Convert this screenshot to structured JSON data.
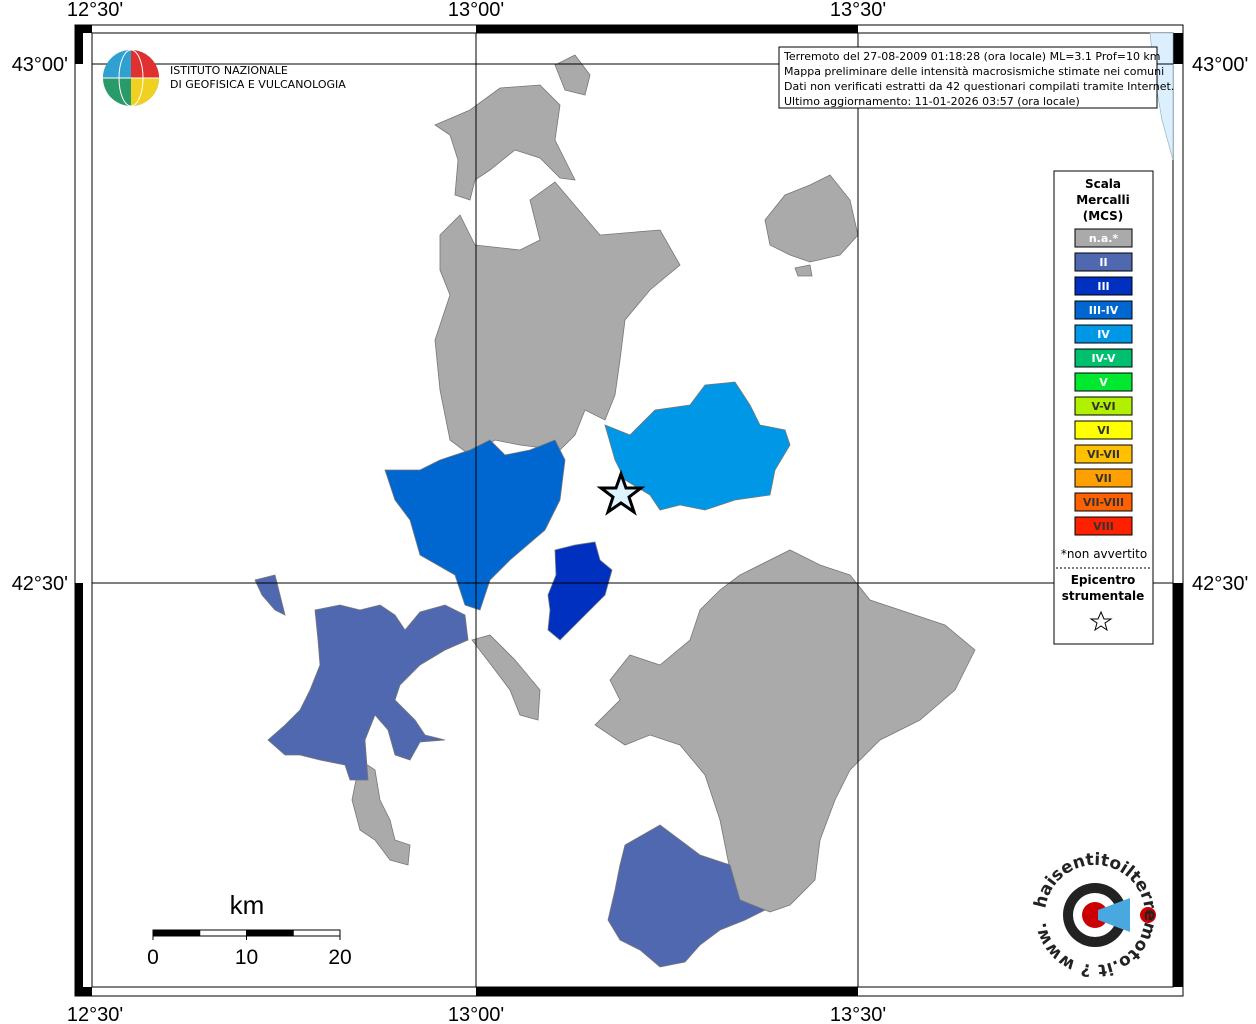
{
  "map": {
    "longitudes": [
      "12°30'",
      "13°00'",
      "13°30'"
    ],
    "latitudes": [
      "43°00'",
      "42°30'"
    ]
  },
  "header": {
    "institute": [
      "ISTITUTO NAZIONALE",
      "DI GEOFISICA E VULCANOLOGIA"
    ],
    "info": [
      "Terremoto del 27-08-2009 01:18:28 (ora locale) ML=3.1 Prof=10 km",
      "Mappa preliminare delle intensità macrosismiche stimate nei comuni",
      "Dati non verificati estratti da 42 questionari compilati tramite Internet.",
      "Ultimo aggiornamento: 11-01-2026 03:57 (ora locale)"
    ]
  },
  "legend": {
    "title": [
      "Scala",
      "Mercalli",
      "(MCS)"
    ],
    "items": [
      {
        "label": "n.a.*",
        "color": "#aaaaaa"
      },
      {
        "label": "II",
        "color": "#5068b0"
      },
      {
        "label": "III",
        "color": "#0030c0"
      },
      {
        "label": "III-IV",
        "color": "#0066d0"
      },
      {
        "label": "IV",
        "color": "#0098e6"
      },
      {
        "label": "IV-V",
        "color": "#00c070"
      },
      {
        "label": "V",
        "color": "#00e830"
      },
      {
        "label": "V-VI",
        "color": "#b0f000"
      },
      {
        "label": "VI",
        "color": "#ffff00"
      },
      {
        "label": "VI-VII",
        "color": "#ffc000"
      },
      {
        "label": "VII",
        "color": "#ffa000"
      },
      {
        "label": "VII-VIII",
        "color": "#ff6000"
      },
      {
        "label": "VIII",
        "color": "#ff2000"
      }
    ],
    "note": "*non avvertito",
    "epicenter": [
      "Epicentro",
      "strumentale"
    ]
  },
  "scale": {
    "unit": "km",
    "ticks": [
      0,
      10,
      20
    ]
  },
  "footer": {
    "logo_text": "haisentitoilterremoto.it ? www."
  }
}
